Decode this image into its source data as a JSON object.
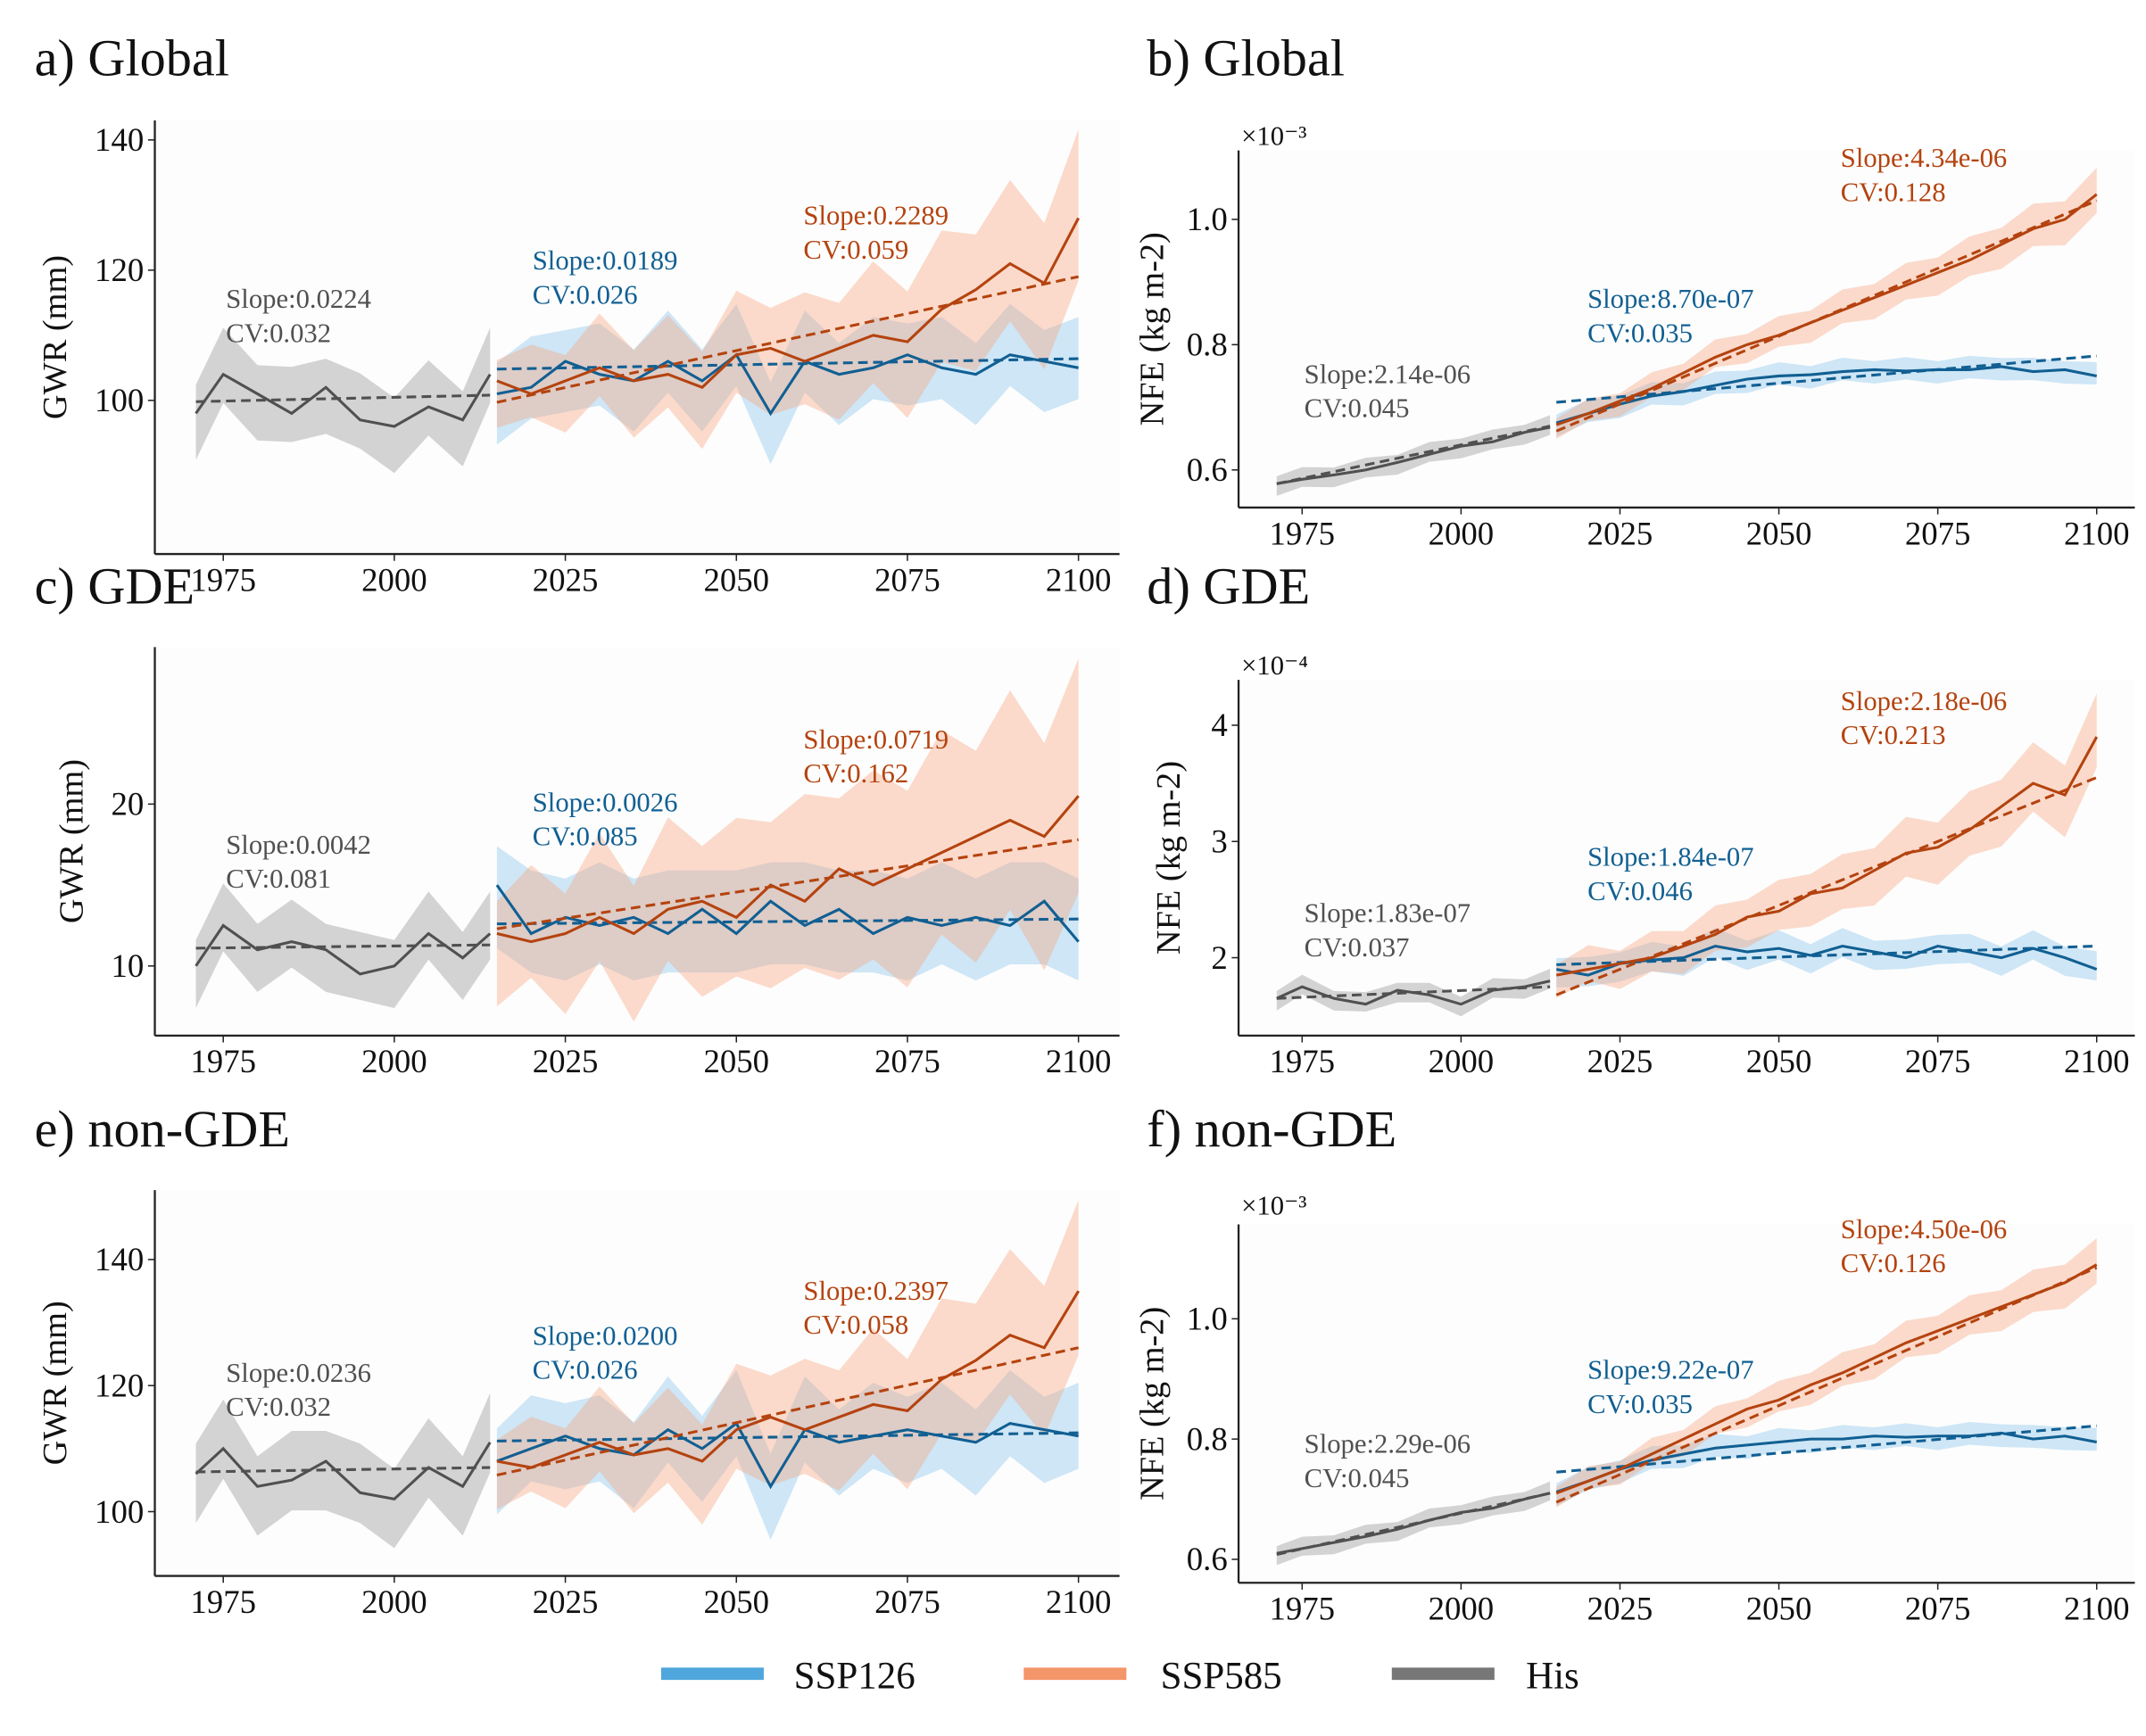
{
  "colors": {
    "SSP126_line": "#115f92",
    "SSP126_band": "#86c4ea",
    "SSP585_line": "#b4430f",
    "SSP585_band": "#f7a57f",
    "His_line": "#505050",
    "His_band": "#a9a9a9",
    "legend_SSP126": "#4ea6dc",
    "legend_SSP585": "#f4956a",
    "legend_His": "#777777"
  },
  "legend": [
    {
      "name": "SSP126",
      "color_key": "legend_SSP126"
    },
    {
      "name": "SSP585",
      "color_key": "legend_SSP585"
    },
    {
      "name": "His",
      "color_key": "legend_His"
    }
  ],
  "chart_data": [
    {
      "type": "line",
      "title": "a) Global",
      "ylabel": "GWR (mm)",
      "multiplier": "",
      "xlim": [
        1965,
        2106
      ],
      "ylim": [
        76.4,
        143
      ],
      "xticks": [
        "1975",
        "2000",
        "2025",
        "2050",
        "2075",
        "2100"
      ],
      "yticks": [
        "100",
        "120",
        "140"
      ],
      "series": [
        {
          "name": "His",
          "x": [
            1971,
            1975,
            1980,
            1985,
            1990,
            1995,
            2000,
            2005,
            2010,
            2014
          ],
          "y": [
            98,
            104,
            101,
            98,
            102,
            97,
            96,
            99,
            97,
            104
          ],
          "band": 5.5,
          "trend": [
            99.8,
            100.8
          ],
          "slope": "Slope:0.0224",
          "cv": "CV:0.032"
        },
        {
          "name": "SSP126",
          "x": [
            2015,
            2020,
            2025,
            2030,
            2035,
            2040,
            2045,
            2050,
            2055,
            2060,
            2065,
            2070,
            2075,
            2080,
            2085,
            2090,
            2095,
            2100
          ],
          "y": [
            101,
            102,
            106,
            104,
            103,
            106,
            103,
            107,
            98,
            106,
            104,
            105,
            107,
            105,
            104,
            107,
            106,
            105
          ],
          "band": 6,
          "trend": [
            104.8,
            106.4
          ],
          "slope": "Slope:0.0189",
          "cv": "CV:0.026"
        },
        {
          "name": "SSP585",
          "x": [
            2015,
            2020,
            2025,
            2030,
            2035,
            2040,
            2045,
            2050,
            2055,
            2060,
            2065,
            2070,
            2075,
            2080,
            2085,
            2090,
            2095,
            2100
          ],
          "y": [
            103,
            101,
            103,
            105,
            103,
            104,
            102,
            107,
            108,
            106,
            108,
            110,
            109,
            114,
            117,
            121,
            118,
            128
          ],
          "band": 8,
          "trend": [
            99.7,
            119
          ],
          "slope": "Slope:0.2289",
          "cv": "CV:0.059"
        }
      ]
    },
    {
      "type": "line",
      "title": "b) Global",
      "ylabel": "NFE (kg m-2)",
      "multiplier": "×10⁻³",
      "xlim": [
        1965,
        2106
      ],
      "ylim": [
        0.54,
        1.11
      ],
      "xticks": [
        "1975",
        "2000",
        "2025",
        "2050",
        "2075",
        "2100"
      ],
      "yticks": [
        "0.6",
        "0.8",
        "1.0"
      ],
      "series": [
        {
          "name": "His",
          "x": [
            1971,
            1975,
            1980,
            1985,
            1990,
            1995,
            2000,
            2005,
            2010,
            2014
          ],
          "y": [
            0.578,
            0.585,
            0.592,
            0.6,
            0.612,
            0.625,
            0.638,
            0.645,
            0.66,
            0.668
          ],
          "band": 0.015,
          "trend": [
            0.578,
            0.67
          ],
          "slope": "Slope:2.14e-06",
          "cv": "CV:0.045"
        },
        {
          "name": "SSP126",
          "x": [
            2015,
            2020,
            2025,
            2030,
            2035,
            2040,
            2045,
            2050,
            2055,
            2060,
            2065,
            2070,
            2075,
            2080,
            2085,
            2090,
            2095,
            2100
          ],
          "y": [
            0.675,
            0.69,
            0.705,
            0.718,
            0.725,
            0.735,
            0.745,
            0.75,
            0.752,
            0.757,
            0.76,
            0.758,
            0.76,
            0.76,
            0.765,
            0.757,
            0.76,
            0.75
          ],
          "band": 0.017,
          "trend": [
            0.708,
            0.782
          ],
          "slope": "Slope:8.70e-07",
          "cv": "CV:0.035"
        },
        {
          "name": "SSP585",
          "x": [
            2015,
            2020,
            2025,
            2030,
            2035,
            2040,
            2045,
            2050,
            2055,
            2060,
            2065,
            2070,
            2075,
            2080,
            2085,
            2090,
            2095,
            2100
          ],
          "y": [
            0.672,
            0.69,
            0.71,
            0.73,
            0.755,
            0.78,
            0.8,
            0.815,
            0.835,
            0.855,
            0.875,
            0.895,
            0.915,
            0.935,
            0.96,
            0.985,
            1.0,
            1.04
          ],
          "band": 0.025,
          "trend": [
            0.662,
            1.03
          ],
          "slope": "Slope:4.34e-06",
          "cv": "CV:0.128"
        }
      ]
    },
    {
      "type": "line",
      "title": "c) GDE",
      "ylabel": "GWR (mm)",
      "multiplier": "",
      "xlim": [
        1965,
        2106
      ],
      "ylim": [
        5.7,
        29.7
      ],
      "xticks": [
        "1975",
        "2000",
        "2025",
        "2050",
        "2075",
        "2100"
      ],
      "yticks": [
        "10",
        "20"
      ],
      "series": [
        {
          "name": "His",
          "x": [
            1971,
            1975,
            1980,
            1985,
            1990,
            1995,
            2000,
            2005,
            2010,
            2014
          ],
          "y": [
            10,
            12.5,
            11,
            11.5,
            11,
            9.5,
            10,
            12,
            10.5,
            12
          ],
          "band": 2,
          "trend": [
            11.1,
            11.3
          ],
          "slope": "Slope:0.0042",
          "cv": "CV:0.081"
        },
        {
          "name": "SSP126",
          "x": [
            2015,
            2020,
            2025,
            2030,
            2035,
            2040,
            2045,
            2050,
            2055,
            2060,
            2065,
            2070,
            2075,
            2080,
            2085,
            2090,
            2095,
            2100
          ],
          "y": [
            15,
            12,
            13,
            12.5,
            13,
            12,
            13.5,
            12,
            14,
            12.5,
            13.5,
            12,
            13,
            12.5,
            13,
            12.5,
            14,
            11.5
          ],
          "band": 3,
          "trend": [
            12.6,
            12.9
          ],
          "slope": "Slope:0.0026",
          "cv": "CV:0.085"
        },
        {
          "name": "SSP585",
          "x": [
            2015,
            2020,
            2025,
            2030,
            2035,
            2040,
            2045,
            2050,
            2055,
            2060,
            2065,
            2070,
            2075,
            2080,
            2085,
            2090,
            2095,
            2100
          ],
          "y": [
            12,
            11.5,
            12,
            13,
            12,
            13.5,
            14,
            13,
            15,
            14,
            16,
            15,
            16,
            17,
            18,
            19,
            18,
            20.5
          ],
          "band": 5,
          "trend": [
            12.3,
            17.8
          ],
          "slope": "Slope:0.0719",
          "cv": "CV:0.162"
        }
      ]
    },
    {
      "type": "line",
      "title": "d) GDE",
      "ylabel": "NFE (kg m-2)",
      "multiplier": "×10⁻⁴",
      "xlim": [
        1965,
        2106
      ],
      "ylim": [
        1.33,
        4.39
      ],
      "xticks": [
        "1975",
        "2000",
        "2025",
        "2050",
        "2075",
        "2100"
      ],
      "yticks": [
        "2",
        "3",
        "4"
      ],
      "series": [
        {
          "name": "His",
          "x": [
            1971,
            1975,
            1980,
            1985,
            1990,
            1995,
            2000,
            2005,
            2010,
            2014
          ],
          "y": [
            1.65,
            1.75,
            1.65,
            1.6,
            1.72,
            1.68,
            1.6,
            1.72,
            1.75,
            1.8
          ],
          "band": 0.08,
          "trend": [
            1.65,
            1.75
          ],
          "slope": "Slope:1.83e-07",
          "cv": "CV:0.037"
        },
        {
          "name": "SSP126",
          "x": [
            2015,
            2020,
            2025,
            2030,
            2035,
            2040,
            2045,
            2050,
            2055,
            2060,
            2065,
            2070,
            2075,
            2080,
            2085,
            2090,
            2095,
            2100
          ],
          "y": [
            1.9,
            1.85,
            1.95,
            1.98,
            2.0,
            2.1,
            2.05,
            2.08,
            2.02,
            2.1,
            2.05,
            2.0,
            2.1,
            2.05,
            2.0,
            2.08,
            2.0,
            1.9
          ],
          "band": 0.12,
          "trend": [
            1.94,
            2.1
          ],
          "slope": "Slope:1.84e-07",
          "cv": "CV:0.046"
        },
        {
          "name": "SSP585",
          "x": [
            2015,
            2020,
            2025,
            2030,
            2035,
            2040,
            2045,
            2050,
            2055,
            2060,
            2065,
            2070,
            2075,
            2080,
            2085,
            2090,
            2095,
            2100
          ],
          "y": [
            1.85,
            1.9,
            1.95,
            2.0,
            2.1,
            2.2,
            2.35,
            2.4,
            2.55,
            2.6,
            2.75,
            2.9,
            2.95,
            3.1,
            3.3,
            3.5,
            3.4,
            3.9
          ],
          "band": 0.22,
          "trend": [
            1.68,
            3.55
          ],
          "slope": "Slope:2.18e-06",
          "cv": "CV:0.213"
        }
      ]
    },
    {
      "type": "line",
      "title": "e) non-GDE",
      "ylabel": "GWR (mm)",
      "multiplier": "",
      "xlim": [
        1965,
        2106
      ],
      "ylim": [
        89.8,
        151
      ],
      "xticks": [
        "1975",
        "2000",
        "2025",
        "2050",
        "2075",
        "2100"
      ],
      "yticks": [
        "100",
        "120",
        "140"
      ],
      "series": [
        {
          "name": "His",
          "x": [
            1971,
            1975,
            1980,
            1985,
            1990,
            1995,
            2000,
            2005,
            2010,
            2014
          ],
          "y": [
            106,
            110,
            104,
            105,
            108,
            103,
            102,
            107,
            104,
            111
          ],
          "band": 6,
          "trend": [
            106.3,
            107
          ],
          "slope": "Slope:0.0236",
          "cv": "CV:0.032"
        },
        {
          "name": "SSP126",
          "x": [
            2015,
            2020,
            2025,
            2030,
            2035,
            2040,
            2045,
            2050,
            2055,
            2060,
            2065,
            2070,
            2075,
            2080,
            2085,
            2090,
            2095,
            2100
          ],
          "y": [
            108,
            110,
            112,
            110,
            109,
            113,
            110,
            114,
            104,
            113,
            111,
            112,
            113,
            112,
            111,
            114,
            113,
            112
          ],
          "band": 6.5,
          "trend": [
            111.2,
            112.5
          ],
          "slope": "Slope:0.0200",
          "cv": "CV:0.026"
        },
        {
          "name": "SSP585",
          "x": [
            2015,
            2020,
            2025,
            2030,
            2035,
            2040,
            2045,
            2050,
            2055,
            2060,
            2065,
            2070,
            2075,
            2080,
            2085,
            2090,
            2095,
            2100
          ],
          "y": [
            108,
            107,
            109,
            111,
            109,
            110,
            108,
            113,
            115,
            113,
            115,
            117,
            116,
            121,
            124,
            128,
            126,
            135
          ],
          "band": 8.5,
          "trend": [
            105.8,
            126
          ],
          "slope": "Slope:0.2397",
          "cv": "CV:0.058"
        }
      ]
    },
    {
      "type": "line",
      "title": "f) non-GDE",
      "ylabel": "NFE (kg m-2)",
      "multiplier": "×10⁻³",
      "xlim": [
        1965,
        2106
      ],
      "ylim": [
        0.561,
        1.157
      ],
      "xticks": [
        "1975",
        "2000",
        "2025",
        "2050",
        "2075",
        "2100"
      ],
      "yticks": [
        "0.6",
        "0.8",
        "1.0"
      ],
      "series": [
        {
          "name": "His",
          "x": [
            1971,
            1975,
            1980,
            1985,
            1990,
            1995,
            2000,
            2005,
            2010,
            2014
          ],
          "y": [
            0.61,
            0.618,
            0.628,
            0.638,
            0.65,
            0.665,
            0.678,
            0.685,
            0.7,
            0.71
          ],
          "band": 0.015,
          "trend": [
            0.608,
            0.71
          ],
          "slope": "Slope:2.29e-06",
          "cv": "CV:0.045"
        },
        {
          "name": "SSP126",
          "x": [
            2015,
            2020,
            2025,
            2030,
            2035,
            2040,
            2045,
            2050,
            2055,
            2060,
            2065,
            2070,
            2075,
            2080,
            2085,
            2090,
            2095,
            2100
          ],
          "y": [
            0.712,
            0.73,
            0.75,
            0.765,
            0.775,
            0.785,
            0.79,
            0.795,
            0.8,
            0.8,
            0.805,
            0.803,
            0.805,
            0.805,
            0.81,
            0.8,
            0.805,
            0.795
          ],
          "band": 0.018,
          "trend": [
            0.745,
            0.822
          ],
          "slope": "Slope:9.22e-07",
          "cv": "CV:0.035"
        },
        {
          "name": "SSP585",
          "x": [
            2015,
            2020,
            2025,
            2030,
            2035,
            2040,
            2045,
            2050,
            2055,
            2060,
            2065,
            2070,
            2075,
            2080,
            2085,
            2090,
            2095,
            2100
          ],
          "y": [
            0.71,
            0.73,
            0.75,
            0.775,
            0.8,
            0.825,
            0.85,
            0.865,
            0.89,
            0.91,
            0.935,
            0.96,
            0.98,
            1.0,
            1.02,
            1.04,
            1.06,
            1.09
          ],
          "band": 0.026,
          "trend": [
            0.695,
            1.085
          ],
          "slope": "Slope:4.50e-06",
          "cv": "CV:0.126"
        }
      ]
    }
  ]
}
